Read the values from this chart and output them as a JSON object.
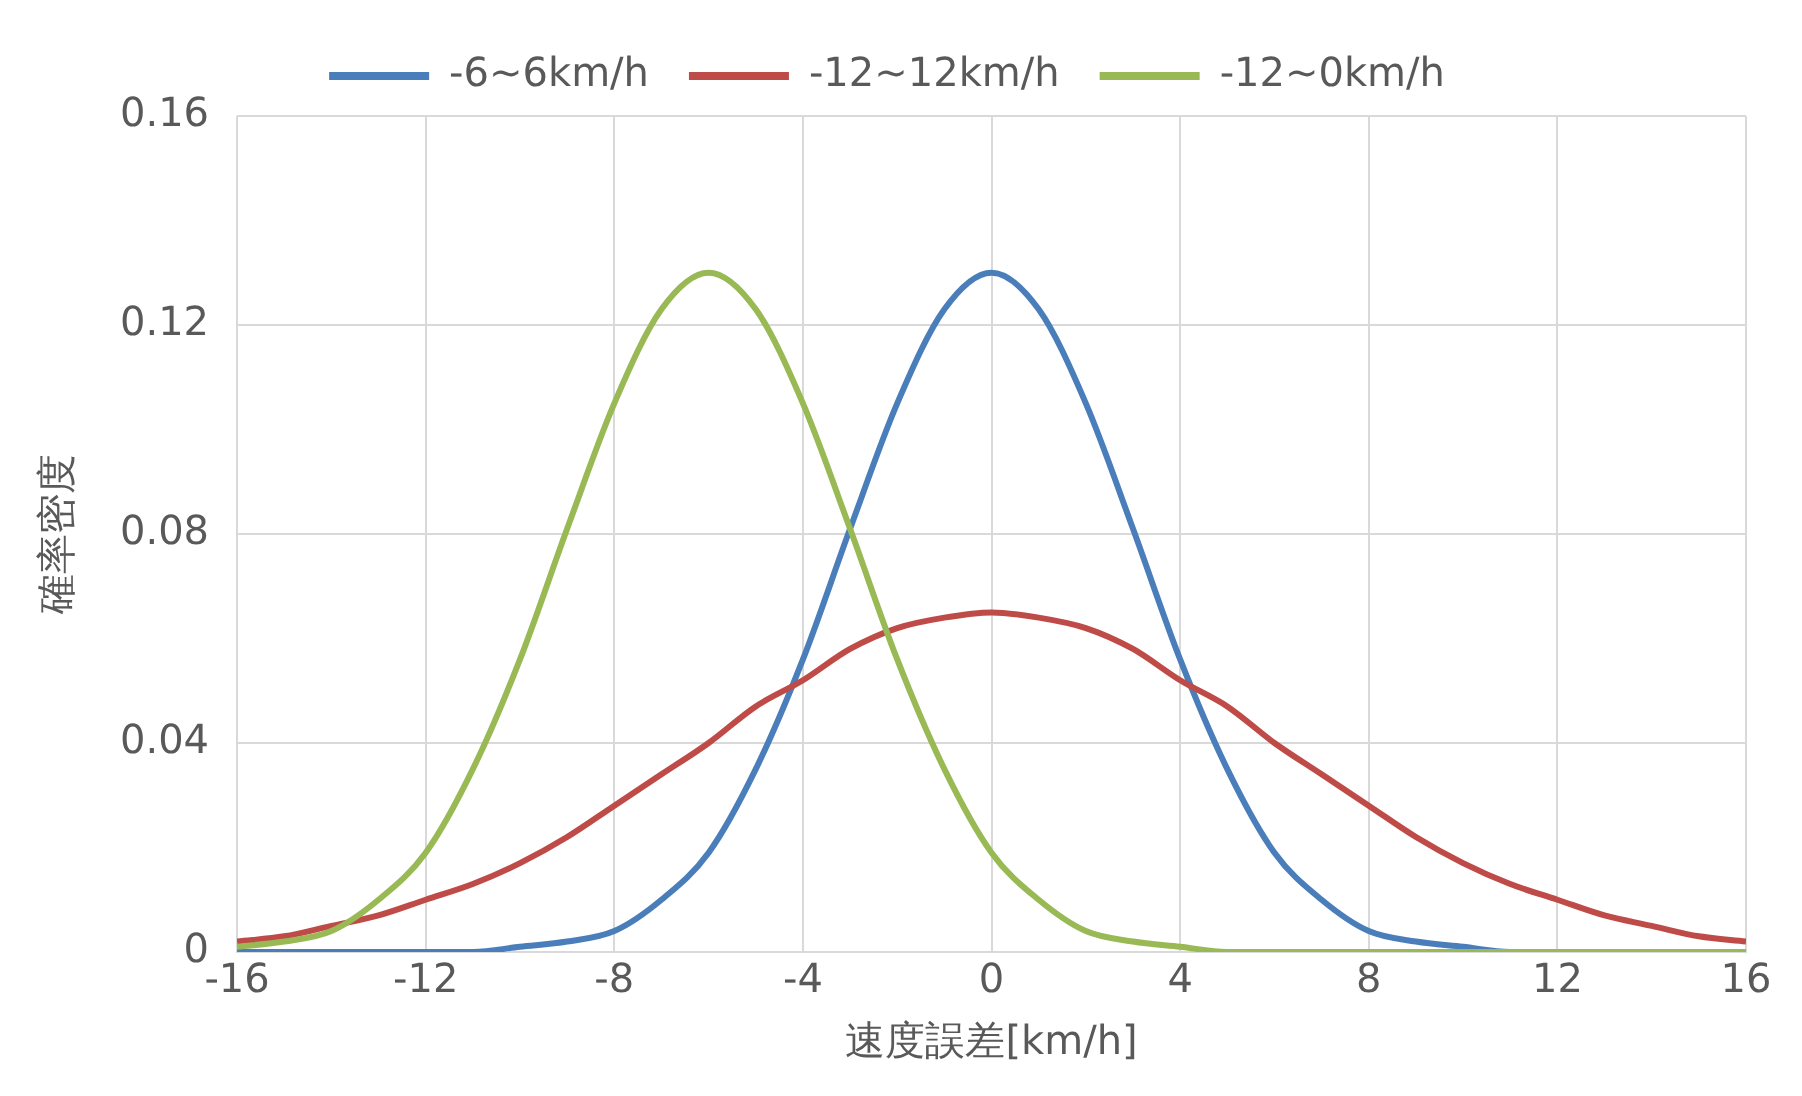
{
  "chart_data": {
    "type": "line",
    "xlabel": "速度誤差[km/h]",
    "ylabel": "確率密度",
    "x": [
      -16,
      -15,
      -14,
      -13,
      -12,
      -11,
      -10,
      -9,
      -8,
      -7,
      -6,
      -5,
      -4,
      -3,
      -2,
      -1,
      0,
      1,
      2,
      3,
      4,
      5,
      6,
      7,
      8,
      9,
      10,
      11,
      12,
      13,
      14,
      15,
      16
    ],
    "series": [
      {
        "name": "-6~6km/h",
        "color": "#4a7ebb",
        "values": [
          0,
          0,
          0,
          0,
          0,
          0,
          0.001,
          0.002,
          0.004,
          0.01,
          0.019,
          0.035,
          0.056,
          0.081,
          0.105,
          0.123,
          0.13,
          0.123,
          0.105,
          0.081,
          0.056,
          0.035,
          0.019,
          0.01,
          0.004,
          0.002,
          0.001,
          0,
          0,
          null,
          null,
          null,
          null
        ]
      },
      {
        "name": "-12~12km/h",
        "color": "#be4b48",
        "values": [
          0.002,
          0.003,
          0.005,
          0.007,
          0.01,
          0.013,
          0.017,
          0.022,
          0.028,
          0.034,
          0.04,
          0.047,
          0.052,
          0.058,
          0.062,
          0.064,
          0.065,
          0.064,
          0.062,
          0.058,
          0.052,
          0.047,
          0.04,
          0.034,
          0.028,
          0.022,
          0.017,
          0.013,
          0.01,
          0.007,
          0.005,
          0.003,
          0.002
        ]
      },
      {
        "name": "-12~0km/h",
        "color": "#98b954",
        "values": [
          0.001,
          0.002,
          0.004,
          0.01,
          0.019,
          0.035,
          0.056,
          0.081,
          0.105,
          0.123,
          0.13,
          0.123,
          0.105,
          0.081,
          0.056,
          0.035,
          0.019,
          0.01,
          0.004,
          0.002,
          0.001,
          0,
          0,
          0,
          0,
          0,
          0,
          0,
          0,
          0,
          0,
          0,
          0
        ]
      }
    ],
    "xlim": [
      -16,
      16
    ],
    "xticks": [
      -16,
      -12,
      -8,
      -4,
      0,
      4,
      8,
      12,
      16
    ],
    "ylim": [
      0,
      0.16
    ],
    "yticks": [
      0,
      0.04,
      0.08,
      0.12,
      0.16
    ],
    "grid": true,
    "legend": "top",
    "marker": "none",
    "line_style": "solid"
  }
}
